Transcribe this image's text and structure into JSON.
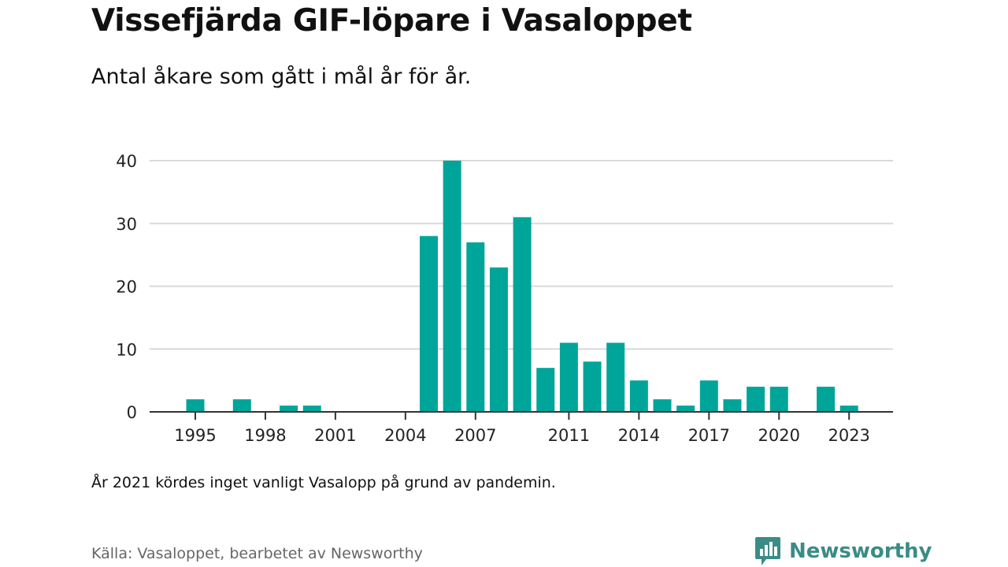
{
  "header": {
    "title": "Vissefjärda GIF-löpare i Vasaloppet",
    "subtitle": "Antal åkare som gått i mål år för år."
  },
  "footer": {
    "note": "År 2021 kördes inget vanligt Vasalopp på grund av pandemin.",
    "source": "Källa: Vasaloppet, bearbetet av Newsworthy",
    "brand": "Newsworthy"
  },
  "colors": {
    "bar": "#00a59a",
    "grid": "#d9d9d9",
    "axis": "#333333",
    "brand": "#3a8c86"
  },
  "icons": {
    "brand_logo": "newsworthy-chart-bubble-icon"
  },
  "chart_data": {
    "type": "bar",
    "title": "Vissefjärda GIF-löpare i Vasaloppet",
    "subtitle": "Antal åkare som gått i mål år för år.",
    "xlabel": "",
    "ylabel": "",
    "ylim": [
      0,
      40
    ],
    "yticks": [
      0,
      10,
      20,
      30,
      40
    ],
    "xticks": [
      "1995",
      "1998",
      "2001",
      "2004",
      "2007",
      "2011",
      "2014",
      "2017",
      "2020",
      "2023"
    ],
    "grid": true,
    "legend": "none",
    "series": [
      {
        "values": [
          {
            "x": 1995,
            "y": 2
          },
          {
            "x": 1997,
            "y": 2
          },
          {
            "x": 1999,
            "y": 1
          },
          {
            "x": 2000,
            "y": 1
          },
          {
            "x": 2005,
            "y": 28
          },
          {
            "x": 2006,
            "y": 40
          },
          {
            "x": 2007,
            "y": 27
          },
          {
            "x": 2008,
            "y": 23
          },
          {
            "x": 2009,
            "y": 31
          },
          {
            "x": 2010,
            "y": 7
          },
          {
            "x": 2011,
            "y": 11
          },
          {
            "x": 2012,
            "y": 8
          },
          {
            "x": 2013,
            "y": 11
          },
          {
            "x": 2014,
            "y": 5
          },
          {
            "x": 2015,
            "y": 2
          },
          {
            "x": 2016,
            "y": 1
          },
          {
            "x": 2017,
            "y": 5
          },
          {
            "x": 2018,
            "y": 2
          },
          {
            "x": 2019,
            "y": 4
          },
          {
            "x": 2020,
            "y": 4
          },
          {
            "x": 2022,
            "y": 4
          },
          {
            "x": 2023,
            "y": 1
          }
        ]
      }
    ]
  }
}
